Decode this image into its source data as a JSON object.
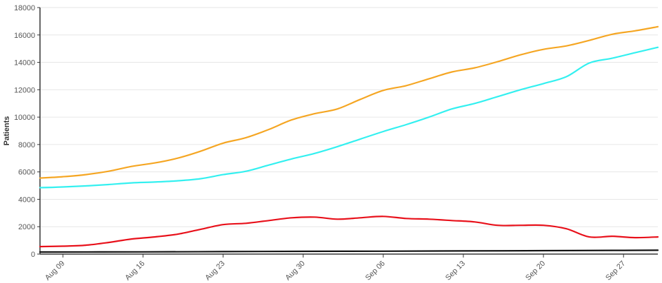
{
  "chart_data": {
    "type": "line",
    "title": "",
    "xlabel": "",
    "ylabel": "Patients",
    "ylim": [
      0,
      18000
    ],
    "yticks": [
      0,
      2000,
      4000,
      6000,
      8000,
      10000,
      12000,
      14000,
      16000,
      18000
    ],
    "xlim": [
      "2020-08-07",
      "2020-09-30"
    ],
    "xticks": [
      {
        "date": "2020-08-09",
        "label": "Aug 09"
      },
      {
        "date": "2020-08-16",
        "label": "Aug 16"
      },
      {
        "date": "2020-08-23",
        "label": "Aug 23"
      },
      {
        "date": "2020-08-30",
        "label": "Aug 30"
      },
      {
        "date": "2020-09-06",
        "label": "Sep 06"
      },
      {
        "date": "2020-09-13",
        "label": "Sep 13"
      },
      {
        "date": "2020-09-20",
        "label": "Sep 20"
      },
      {
        "date": "2020-09-27",
        "label": "Sep 27"
      }
    ],
    "grid": true,
    "legend": "none",
    "series": [
      {
        "color": "#f5a623",
        "points": [
          [
            "2020-08-07",
            5550
          ],
          [
            "2020-08-09",
            5650
          ],
          [
            "2020-08-11",
            5800
          ],
          [
            "2020-08-13",
            6050
          ],
          [
            "2020-08-15",
            6400
          ],
          [
            "2020-08-17",
            6650
          ],
          [
            "2020-08-19",
            7000
          ],
          [
            "2020-08-21",
            7500
          ],
          [
            "2020-08-23",
            8100
          ],
          [
            "2020-08-25",
            8500
          ],
          [
            "2020-08-27",
            9100
          ],
          [
            "2020-08-29",
            9800
          ],
          [
            "2020-08-31",
            10250
          ],
          [
            "2020-09-02",
            10600
          ],
          [
            "2020-09-04",
            11300
          ],
          [
            "2020-09-06",
            11950
          ],
          [
            "2020-09-08",
            12300
          ],
          [
            "2020-09-10",
            12800
          ],
          [
            "2020-09-12",
            13300
          ],
          [
            "2020-09-14",
            13600
          ],
          [
            "2020-09-16",
            14050
          ],
          [
            "2020-09-18",
            14550
          ],
          [
            "2020-09-20",
            14950
          ],
          [
            "2020-09-22",
            15200
          ],
          [
            "2020-09-24",
            15600
          ],
          [
            "2020-09-26",
            16050
          ],
          [
            "2020-09-28",
            16300
          ],
          [
            "2020-09-30",
            16600
          ]
        ]
      },
      {
        "color": "#33f0f0",
        "points": [
          [
            "2020-08-07",
            4850
          ],
          [
            "2020-08-09",
            4900
          ],
          [
            "2020-08-11",
            4980
          ],
          [
            "2020-08-13",
            5080
          ],
          [
            "2020-08-15",
            5200
          ],
          [
            "2020-08-17",
            5260
          ],
          [
            "2020-08-19",
            5350
          ],
          [
            "2020-08-21",
            5500
          ],
          [
            "2020-08-23",
            5800
          ],
          [
            "2020-08-25",
            6050
          ],
          [
            "2020-08-27",
            6500
          ],
          [
            "2020-08-29",
            6950
          ],
          [
            "2020-08-31",
            7350
          ],
          [
            "2020-09-02",
            7850
          ],
          [
            "2020-09-04",
            8400
          ],
          [
            "2020-09-06",
            8950
          ],
          [
            "2020-09-08",
            9450
          ],
          [
            "2020-09-10",
            10000
          ],
          [
            "2020-09-12",
            10600
          ],
          [
            "2020-09-14",
            11000
          ],
          [
            "2020-09-16",
            11500
          ],
          [
            "2020-09-18",
            12000
          ],
          [
            "2020-09-20",
            12450
          ],
          [
            "2020-09-22",
            12950
          ],
          [
            "2020-09-24",
            13950
          ],
          [
            "2020-09-26",
            14300
          ],
          [
            "2020-09-28",
            14700
          ],
          [
            "2020-09-30",
            15100
          ]
        ]
      },
      {
        "color": "#e8101a",
        "points": [
          [
            "2020-08-07",
            550
          ],
          [
            "2020-08-09",
            580
          ],
          [
            "2020-08-11",
            650
          ],
          [
            "2020-08-13",
            850
          ],
          [
            "2020-08-15",
            1100
          ],
          [
            "2020-08-17",
            1250
          ],
          [
            "2020-08-19",
            1450
          ],
          [
            "2020-08-21",
            1800
          ],
          [
            "2020-08-23",
            2150
          ],
          [
            "2020-08-25",
            2250
          ],
          [
            "2020-08-27",
            2450
          ],
          [
            "2020-08-29",
            2650
          ],
          [
            "2020-08-31",
            2700
          ],
          [
            "2020-09-02",
            2550
          ],
          [
            "2020-09-04",
            2650
          ],
          [
            "2020-09-06",
            2750
          ],
          [
            "2020-09-08",
            2600
          ],
          [
            "2020-09-10",
            2550
          ],
          [
            "2020-09-12",
            2450
          ],
          [
            "2020-09-14",
            2350
          ],
          [
            "2020-09-16",
            2100
          ],
          [
            "2020-09-18",
            2100
          ],
          [
            "2020-09-20",
            2100
          ],
          [
            "2020-09-22",
            1850
          ],
          [
            "2020-09-24",
            1250
          ],
          [
            "2020-09-26",
            1300
          ],
          [
            "2020-09-28",
            1200
          ],
          [
            "2020-09-30",
            1250
          ]
        ]
      },
      {
        "color": "#111111",
        "points": [
          [
            "2020-08-07",
            150
          ],
          [
            "2020-08-16",
            160
          ],
          [
            "2020-08-23",
            180
          ],
          [
            "2020-08-30",
            200
          ],
          [
            "2020-09-06",
            210
          ],
          [
            "2020-09-13",
            230
          ],
          [
            "2020-09-20",
            250
          ],
          [
            "2020-09-27",
            270
          ],
          [
            "2020-09-30",
            280
          ]
        ]
      }
    ]
  }
}
